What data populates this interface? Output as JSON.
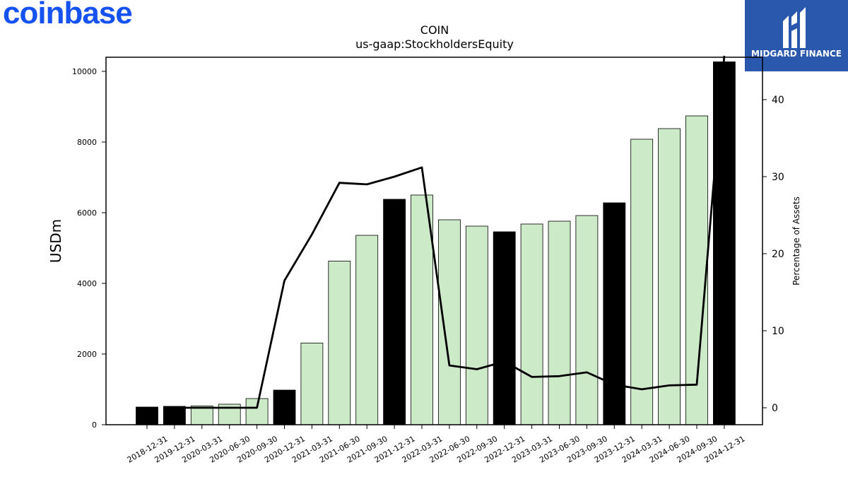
{
  "header": {
    "left_logo_text": "coinbase",
    "right_logo_text": "MIDGARD FINANCE",
    "left_logo_color": "#1652f0",
    "right_logo_bg": "#2a58ad"
  },
  "chart_data": {
    "type": "bar",
    "title": "COIN",
    "subtitle": "us-gaap:StockholdersEquity",
    "ylabel": "USDm",
    "y2label": "Percentage of Assets",
    "ylim": [
      0,
      10400
    ],
    "y2lim": [
      -2.2,
      45.5
    ],
    "yticks": [
      0,
      2000,
      4000,
      6000,
      8000,
      10000
    ],
    "y2ticks": [
      0,
      10,
      20,
      30,
      40
    ],
    "grid": false,
    "categories": [
      "2018-12-31",
      "2019-12-31",
      "2020-03-31",
      "2020-06-30",
      "2020-09-30",
      "2020-12-31",
      "2021-03-31",
      "2021-06-30",
      "2021-09-30",
      "2021-12-31",
      "2022-03-31",
      "2022-06-30",
      "2022-09-30",
      "2022-12-31",
      "2023-03-31",
      "2023-06-30",
      "2023-09-30",
      "2023-12-31",
      "2024-03-31",
      "2024-06-30",
      "2024-09-30",
      "2024-12-31"
    ],
    "series": [
      {
        "kind": "bar",
        "values": [
          500,
          520,
          530,
          580,
          740,
          980,
          2310,
          4630,
          5360,
          6380,
          6500,
          5800,
          5620,
          5460,
          5680,
          5760,
          5920,
          6280,
          8080,
          8380,
          8740,
          10270
        ],
        "annual_flags": [
          true,
          true,
          false,
          false,
          false,
          true,
          false,
          false,
          false,
          true,
          false,
          false,
          false,
          true,
          false,
          false,
          false,
          true,
          false,
          false,
          false,
          true
        ],
        "annual_color": "#000000",
        "quarterly_color": "#cdeac8"
      },
      {
        "kind": "line",
        "axis": "y2",
        "color": "#000000",
        "values": [
          null,
          0.0,
          0.0,
          0.0,
          0.0,
          16.5,
          22.5,
          29.2,
          29.0,
          30.0,
          31.2,
          5.5,
          5.0,
          6.0,
          4.0,
          4.1,
          4.6,
          3.0,
          2.4,
          2.9,
          3.0,
          46.0
        ]
      }
    ]
  }
}
